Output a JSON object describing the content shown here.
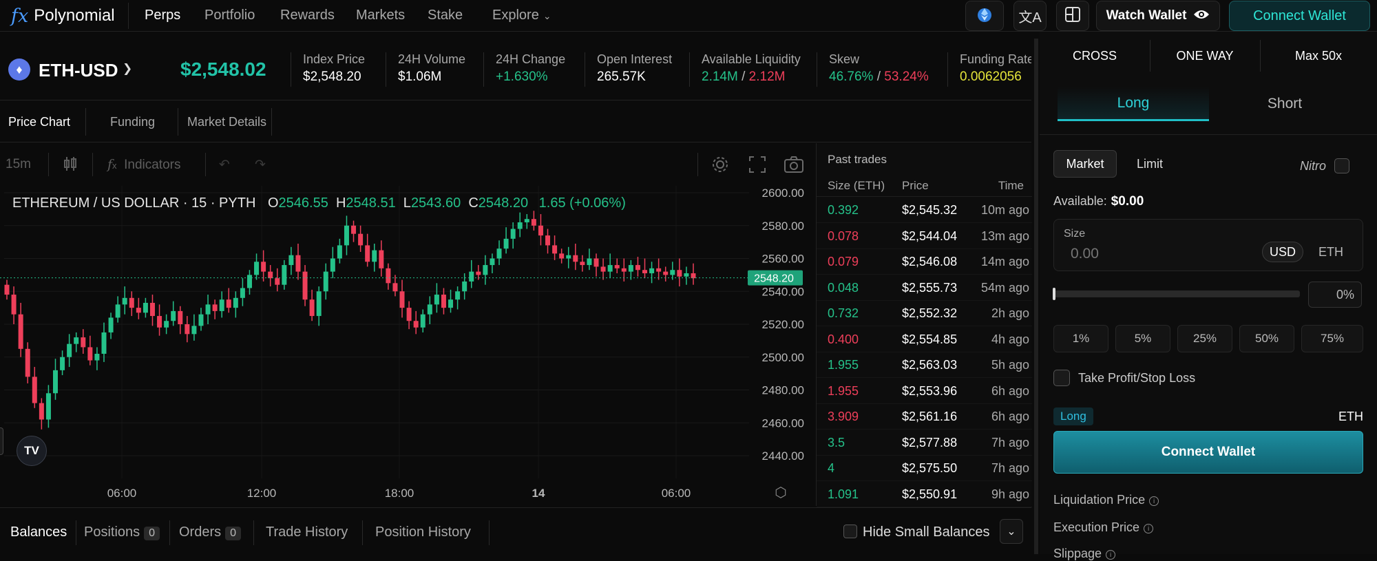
{
  "nav": {
    "logo_mark": "fx",
    "logo_text": "Polynomial",
    "links": [
      "Perps",
      "Portfolio",
      "Rewards",
      "Markets",
      "Stake"
    ],
    "explore": "Explore",
    "watch_wallet": "Watch Wallet",
    "connect_wallet": "Connect Wallet",
    "icons": [
      "network-icon",
      "language-icon",
      "layout-icon",
      "eye-icon"
    ]
  },
  "market": {
    "symbol": "ETH-USD",
    "mark_price": "$2,548.02",
    "stats": [
      {
        "label": "Index Price",
        "value": "$2,548.20"
      },
      {
        "label": "24H Volume",
        "value": "$1.06M"
      },
      {
        "label": "24H Change",
        "value": "+1.630%"
      },
      {
        "label": "Open Interest",
        "value": "265.57K"
      },
      {
        "label": "Available Liquidity",
        "value_a": "2.14M",
        "value_b": "2.12M"
      },
      {
        "label": "Skew",
        "value_a": "46.76%",
        "value_b": "53.24%"
      },
      {
        "label": "Funding Rate",
        "value": "0.0062056"
      }
    ]
  },
  "chart_tabs": [
    "Price Chart",
    "Funding",
    "Market Details"
  ],
  "toolbar": {
    "interval": "15m",
    "indicators": "Indicators"
  },
  "chart_data": {
    "type": "candlestick",
    "legend": {
      "title": "ETHEREUM / US DOLLAR · 15 · PYTH",
      "open": "2546.55",
      "high": "2548.51",
      "low": "2543.60",
      "close": "2548.20",
      "change": "1.65 (+0.06%)"
    },
    "y_ticks": [
      "2600.00",
      "2580.00",
      "2560.00",
      "2540.00",
      "2520.00",
      "2500.00",
      "2480.00",
      "2460.00",
      "2440.00"
    ],
    "y_range": [
      2430,
      2605
    ],
    "x_ticks": [
      "06:00",
      "12:00",
      "18:00",
      "14",
      "06:00"
    ],
    "last_price": "2548.20",
    "close_series": [
      2538,
      2526,
      2505,
      2488,
      2472,
      2462,
      2478,
      2492,
      2500,
      2508,
      2512,
      2506,
      2498,
      2502,
      2515,
      2524,
      2532,
      2536,
      2530,
      2527,
      2533,
      2525,
      2518,
      2522,
      2528,
      2520,
      2514,
      2519,
      2526,
      2532,
      2528,
      2535,
      2530,
      2536,
      2542,
      2550,
      2558,
      2552,
      2548,
      2544,
      2556,
      2562,
      2552,
      2535,
      2525,
      2540,
      2552,
      2560,
      2568,
      2580,
      2575,
      2568,
      2558,
      2565,
      2554,
      2545,
      2540,
      2530,
      2522,
      2518,
      2526,
      2532,
      2538,
      2530,
      2535,
      2540,
      2546,
      2552,
      2550,
      2556,
      2560,
      2566,
      2572,
      2578,
      2582,
      2584,
      2580,
      2574,
      2568,
      2563,
      2560,
      2562,
      2558,
      2556,
      2560,
      2555,
      2552,
      2556,
      2554,
      2552,
      2556,
      2553,
      2551,
      2554,
      2552,
      2550,
      2553,
      2549,
      2551,
      2548
    ]
  },
  "past_trades": {
    "title": "Past trades",
    "headers": [
      "Size (ETH)",
      "Price",
      "Time"
    ],
    "rows": [
      {
        "size": "0.392",
        "side": "buy",
        "price": "$2,545.32",
        "time": "10m ago"
      },
      {
        "size": "0.078",
        "side": "sell",
        "price": "$2,544.04",
        "time": "13m ago"
      },
      {
        "size": "0.079",
        "side": "sell",
        "price": "$2,546.08",
        "time": "14m ago"
      },
      {
        "size": "0.048",
        "side": "buy",
        "price": "$2,555.73",
        "time": "54m ago"
      },
      {
        "size": "0.732",
        "side": "buy",
        "price": "$2,552.32",
        "time": "2h ago"
      },
      {
        "size": "0.400",
        "side": "sell",
        "price": "$2,554.85",
        "time": "4h ago"
      },
      {
        "size": "1.955",
        "side": "buy",
        "price": "$2,563.03",
        "time": "5h ago"
      },
      {
        "size": "1.955",
        "side": "sell",
        "price": "$2,553.96",
        "time": "6h ago"
      },
      {
        "size": "3.909",
        "side": "sell",
        "price": "$2,561.16",
        "time": "6h ago"
      },
      {
        "size": "3.5",
        "side": "buy",
        "price": "$2,577.88",
        "time": "7h ago"
      },
      {
        "size": "4",
        "side": "buy",
        "price": "$2,575.50",
        "time": "7h ago"
      },
      {
        "size": "1.091",
        "side": "buy",
        "price": "$2,550.91",
        "time": "9h ago"
      }
    ]
  },
  "bottom_tabs": {
    "balances": "Balances",
    "positions": "Positions",
    "positions_count": "0",
    "orders": "Orders",
    "orders_count": "0",
    "trade_history": "Trade History",
    "position_history": "Position History",
    "hide_small": "Hide Small Balances"
  },
  "order_panel": {
    "margin_mode": "CROSS",
    "position_mode": "ONE WAY",
    "leverage": "Max 50x",
    "tab_long": "Long",
    "tab_short": "Short",
    "order_market": "Market",
    "order_limit": "Limit",
    "nitro": "Nitro",
    "available_label": "Available:",
    "available_value": "$0.00",
    "size_label": "Size",
    "size_placeholder": "0.00",
    "unit_usd": "USD",
    "unit_eth": "ETH",
    "slider_percent": 0,
    "percent_display": "0%",
    "quick": [
      "1%",
      "5%",
      "25%",
      "50%",
      "75%"
    ],
    "tpsl": "Take Profit/Stop Loss",
    "side_badge": "Long",
    "side_unit": "ETH",
    "connect_wallet": "Connect Wallet",
    "info": [
      "Liquidation Price",
      "Execution Price",
      "Slippage"
    ]
  },
  "colors": {
    "up": "#25c28a",
    "down": "#ee3f5a",
    "accent": "#20c0c8"
  }
}
